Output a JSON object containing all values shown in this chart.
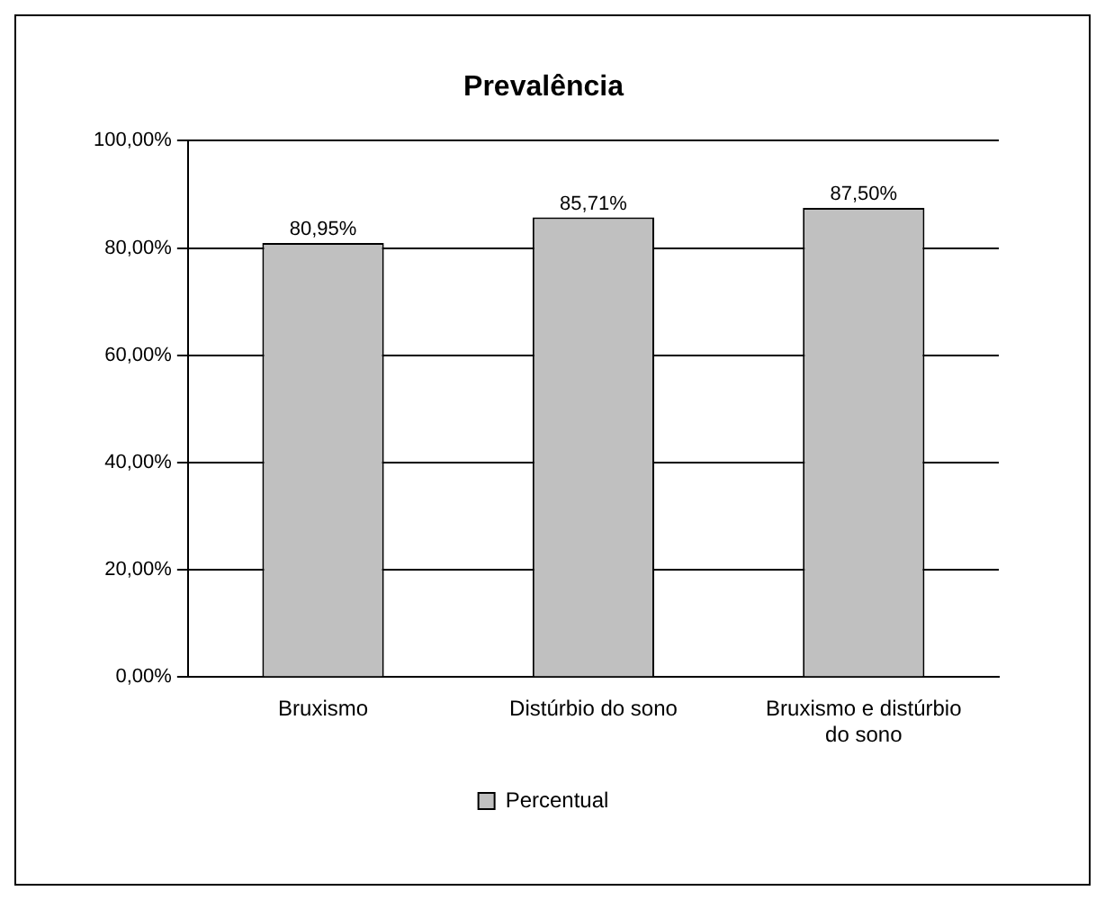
{
  "chart_data": {
    "type": "bar",
    "title": "Prevalência",
    "categories": [
      "Bruxismo",
      "Distúrbio do sono",
      "Bruxismo e distúrbio do sono"
    ],
    "series": [
      {
        "name": "Percentual",
        "color": "#c0c0c0",
        "values": [
          80.95,
          85.71,
          87.5
        ],
        "value_labels": [
          "80,95%",
          "85,71%",
          "87,50%"
        ]
      }
    ],
    "ylim": [
      0,
      100
    ],
    "yticks": [
      {
        "value": 0,
        "label": "0,00%"
      },
      {
        "value": 20,
        "label": "20,00%"
      },
      {
        "value": 40,
        "label": "40,00%"
      },
      {
        "value": 60,
        "label": "60,00%"
      },
      {
        "value": 80,
        "label": "80,00%"
      },
      {
        "value": 100,
        "label": "100,00%"
      }
    ],
    "grid": "y",
    "legend": "bottom"
  }
}
